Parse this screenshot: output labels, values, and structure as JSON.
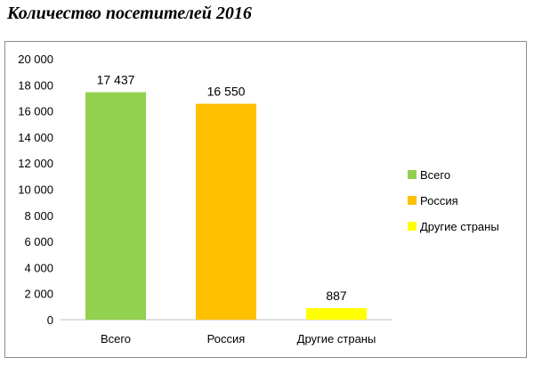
{
  "page_title": "Количество посетителей 2016",
  "chart_data": {
    "type": "bar",
    "title": "",
    "xlabel": "",
    "ylabel": "",
    "categories": [
      "Всего",
      "Россия",
      "Другие страны"
    ],
    "values": [
      17437,
      16550,
      887
    ],
    "value_labels": [
      "17 437",
      "16 550",
      "887"
    ],
    "colors": [
      "#92d050",
      "#ffc000",
      "#ffff00"
    ],
    "ylim": [
      0,
      20000
    ],
    "y_ticks": [
      0,
      2000,
      4000,
      6000,
      8000,
      10000,
      12000,
      14000,
      16000,
      18000,
      20000
    ],
    "y_tick_labels": [
      "0",
      "2 000",
      "4 000",
      "6 000",
      "8 000",
      "10 000",
      "12 000",
      "14 000",
      "16 000",
      "18 000",
      "20 000"
    ],
    "grid": false,
    "legend": {
      "position": "right",
      "entries": [
        "Всего",
        "Россия",
        "Другие страны"
      ]
    }
  }
}
